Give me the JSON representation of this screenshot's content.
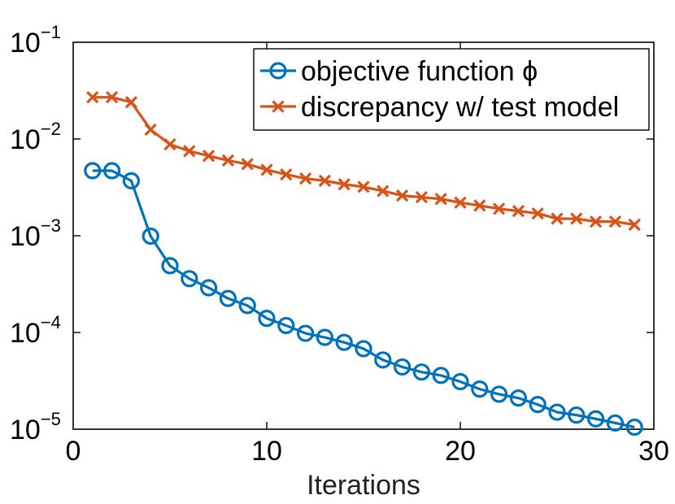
{
  "chart_data": {
    "type": "line",
    "title": "",
    "xlabel": "Iterations",
    "ylabel": "",
    "xlim": [
      0,
      30
    ],
    "ylim": [
      1e-05,
      0.1
    ],
    "yscale": "log",
    "grid": false,
    "legend_position": "top-right",
    "xticks": [
      {
        "value": 0,
        "label": "0"
      },
      {
        "value": 10,
        "label": "10"
      },
      {
        "value": 20,
        "label": "20"
      },
      {
        "value": 30,
        "label": "30"
      }
    ],
    "yticks": [
      {
        "value": 0.1,
        "base": "10",
        "exp": "−1"
      },
      {
        "value": 0.01,
        "base": "10",
        "exp": "−2"
      },
      {
        "value": 0.001,
        "base": "10",
        "exp": "−3"
      },
      {
        "value": 0.0001,
        "base": "10",
        "exp": "−4"
      },
      {
        "value": 1e-05,
        "base": "10",
        "exp": "−5"
      }
    ],
    "series": [
      {
        "name": "objective function ϕ",
        "color": "#0072BD",
        "marker": "circle",
        "x": [
          1,
          2,
          3,
          4,
          5,
          6,
          7,
          8,
          9,
          10,
          11,
          12,
          13,
          14,
          15,
          16,
          17,
          18,
          19,
          20,
          21,
          22,
          23,
          24,
          25,
          26,
          27,
          28,
          29
        ],
        "values": [
          0.0047,
          0.0047,
          0.0037,
          0.00099,
          0.00049,
          0.00036,
          0.00029,
          0.000225,
          0.00019,
          0.00014,
          0.000118,
          9.8e-05,
          8.9e-05,
          7.9e-05,
          6.8e-05,
          5.2e-05,
          4.4e-05,
          3.9e-05,
          3.6e-05,
          3.1e-05,
          2.6e-05,
          2.3e-05,
          2.1e-05,
          1.8e-05,
          1.5e-05,
          1.4e-05,
          1.28e-05,
          1.16e-05,
          1.05e-05
        ]
      },
      {
        "name": "discrepancy w/ test model",
        "color": "#D95319",
        "marker": "x",
        "x": [
          1,
          2,
          3,
          4,
          5,
          6,
          7,
          8,
          9,
          10,
          11,
          12,
          13,
          14,
          15,
          16,
          17,
          18,
          19,
          20,
          21,
          22,
          23,
          24,
          25,
          26,
          27,
          28,
          29
        ],
        "values": [
          0.027,
          0.027,
          0.024,
          0.0125,
          0.0088,
          0.0075,
          0.0067,
          0.006,
          0.0055,
          0.0048,
          0.0043,
          0.0039,
          0.0037,
          0.0034,
          0.0032,
          0.0029,
          0.0026,
          0.0025,
          0.0024,
          0.0022,
          0.00205,
          0.0019,
          0.0018,
          0.0017,
          0.0015,
          0.0015,
          0.0014,
          0.0014,
          0.0013
        ]
      }
    ]
  }
}
